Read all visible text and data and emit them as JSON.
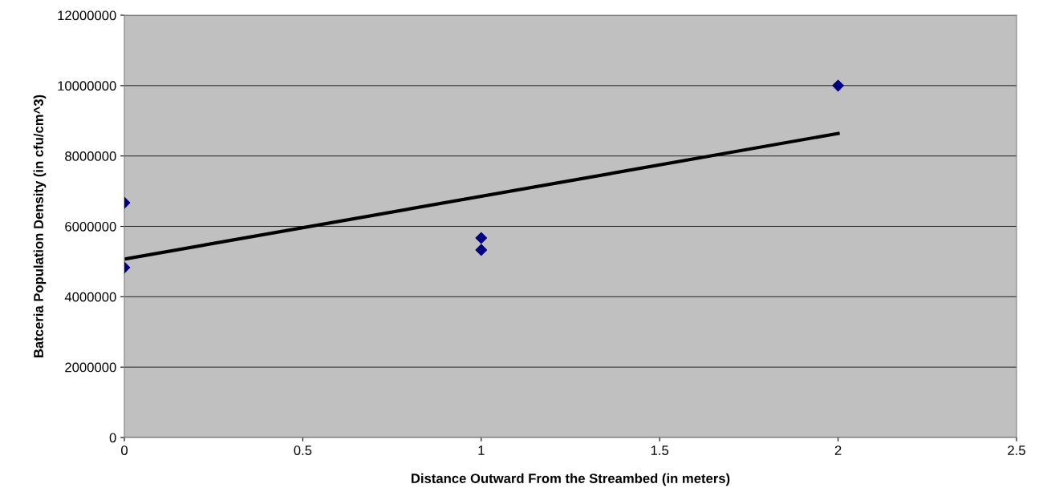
{
  "chart_data": {
    "type": "scatter",
    "xlabel": "Distance Outward From the Streambed (in meters)",
    "ylabel": "Batceria Population Density (in cfu/cm^3)",
    "series": [
      {
        "color": "#000080",
        "marker": "diamond",
        "x": [
          0,
          0,
          1,
          1,
          2
        ],
        "values": [
          6670000,
          4830000,
          5670000,
          5330000,
          10000000
        ]
      },
      {
        "type": "line",
        "color": "#000000",
        "marker": "none",
        "x": [
          0,
          2
        ],
        "values": [
          5070000,
          8640000
        ]
      }
    ],
    "xlim": [
      0,
      2.5
    ],
    "xticks": [
      0,
      0.5,
      1,
      1.5,
      2,
      2.5
    ],
    "ylim": [
      0,
      12000000
    ],
    "yticks": [
      0,
      2000000,
      4000000,
      6000000,
      8000000,
      10000000,
      12000000
    ],
    "grid": "y",
    "legend": false
  }
}
